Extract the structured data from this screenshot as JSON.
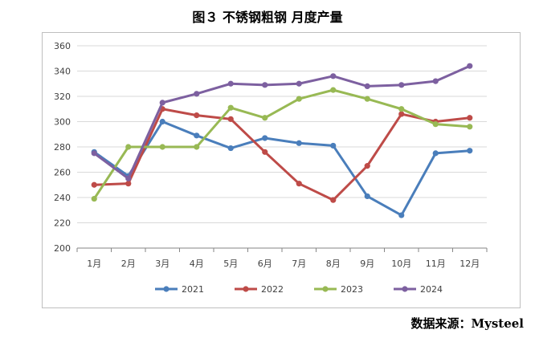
{
  "title": "图３ 不锈钢粗钢 月度产量",
  "source": "数据来源：Mysteel",
  "chart_data": {
    "type": "line",
    "categories": [
      "1月",
      "2月",
      "3月",
      "4月",
      "5月",
      "6月",
      "7月",
      "8月",
      "9月",
      "10月",
      "11月",
      "12月"
    ],
    "ylim": [
      200,
      360
    ],
    "yticks": [
      200,
      220,
      240,
      260,
      280,
      300,
      320,
      340,
      360
    ],
    "grid": true,
    "legend_position": "bottom",
    "series": [
      {
        "name": "2021",
        "color": "#4a7ebb",
        "values": [
          276,
          257,
          300,
          289,
          279,
          287,
          283,
          281,
          241,
          226,
          275,
          277
        ]
      },
      {
        "name": "2022",
        "color": "#be4b48",
        "values": [
          250,
          251,
          310,
          305,
          302,
          276,
          251,
          238,
          265,
          306,
          300,
          303
        ]
      },
      {
        "name": "2023",
        "color": "#98b954",
        "values": [
          239,
          280,
          280,
          280,
          311,
          303,
          318,
          325,
          318,
          310,
          298,
          296
        ]
      },
      {
        "name": "2024",
        "color": "#7d60a0",
        "values": [
          275,
          255,
          315,
          322,
          330,
          329,
          330,
          336,
          328,
          329,
          332,
          344
        ]
      }
    ]
  }
}
